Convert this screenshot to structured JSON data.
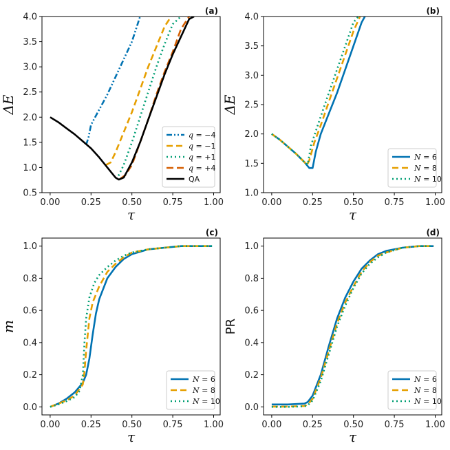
{
  "colors": {
    "blue": "#0072b2",
    "orange": "#e69f00",
    "green": "#009e73",
    "vermilion": "#d55e00",
    "black": "#000000"
  },
  "chart_data": [
    {
      "id": "a",
      "type": "line",
      "tag": "(a)",
      "xlabel": "τ",
      "ylabel": "ΔE",
      "xlim": [
        -0.05,
        1.04
      ],
      "ylim": [
        0.5,
        4.0
      ],
      "xticks": [
        "0.00",
        "0.25",
        "0.50",
        "0.75",
        "1.00"
      ],
      "yticks": [
        "0.5",
        "1.0",
        "1.5",
        "2.0",
        "2.5",
        "3.0",
        "3.5",
        "4.0"
      ],
      "legend_position": "lower-right",
      "series": [
        {
          "name": "q = −4",
          "prefix": "q",
          "suffix": " = −4",
          "color": "blue",
          "dash": "8,3,2,3,2,3",
          "x": [
            0.22,
            0.235,
            0.25,
            0.3,
            0.35,
            0.4,
            0.45,
            0.5,
            0.55
          ],
          "y": [
            1.45,
            1.6,
            1.85,
            2.15,
            2.45,
            2.8,
            3.15,
            3.5,
            4.0
          ]
        },
        {
          "name": "q = −1",
          "prefix": "q",
          "suffix": " = −1",
          "color": "orange",
          "dash": "9,5",
          "x": [
            0.34,
            0.37,
            0.4,
            0.45,
            0.5,
            0.55,
            0.6,
            0.65,
            0.7,
            0.74
          ],
          "y": [
            1.05,
            1.1,
            1.3,
            1.7,
            2.1,
            2.55,
            3.0,
            3.4,
            3.8,
            4.0
          ]
        },
        {
          "name": "q = +1",
          "prefix": "q",
          "suffix": " = +1",
          "color": "green",
          "dash": "2,4",
          "x": [
            0.4,
            0.42,
            0.45,
            0.5,
            0.55,
            0.6,
            0.65,
            0.7,
            0.75,
            0.8
          ],
          "y": [
            0.78,
            0.85,
            1.05,
            1.5,
            2.0,
            2.5,
            3.0,
            3.45,
            3.85,
            4.0
          ]
        },
        {
          "name": "q = +4",
          "prefix": "q",
          "suffix": " = +4",
          "color": "vermilion",
          "dash": "10,5",
          "x": [
            0.43,
            0.46,
            0.5,
            0.55,
            0.6,
            0.65,
            0.7,
            0.75,
            0.8,
            0.85
          ],
          "y": [
            0.78,
            0.85,
            1.05,
            1.5,
            1.95,
            2.45,
            2.9,
            3.3,
            3.75,
            4.0
          ]
        },
        {
          "name": "QA",
          "prefix": "",
          "suffix": "QA",
          "color": "black",
          "dash": "",
          "x": [
            0.0,
            0.05,
            0.1,
            0.15,
            0.2,
            0.25,
            0.3,
            0.35,
            0.4,
            0.42,
            0.45,
            0.5,
            0.55,
            0.6,
            0.65,
            0.7,
            0.75,
            0.8,
            0.85,
            0.88
          ],
          "y": [
            2.0,
            1.9,
            1.78,
            1.66,
            1.52,
            1.38,
            1.2,
            1.0,
            0.8,
            0.76,
            0.8,
            1.1,
            1.5,
            1.95,
            2.4,
            2.85,
            3.25,
            3.6,
            3.95,
            4.0
          ]
        }
      ]
    },
    {
      "id": "b",
      "type": "line",
      "tag": "(b)",
      "xlabel": "τ",
      "ylabel": "ΔE",
      "xlim": [
        -0.05,
        1.04
      ],
      "ylim": [
        1.0,
        4.0
      ],
      "xticks": [
        "0.00",
        "0.25",
        "0.50",
        "0.75",
        "1.00"
      ],
      "yticks": [
        "1.0",
        "1.5",
        "2.0",
        "2.5",
        "3.0",
        "3.5",
        "4.0"
      ],
      "legend_position": "lower-right",
      "series": [
        {
          "name": "N = 6",
          "prefix": "N",
          "suffix": " = 6",
          "color": "blue",
          "dash": "",
          "x": [
            0.0,
            0.05,
            0.1,
            0.15,
            0.2,
            0.23,
            0.25,
            0.27,
            0.3,
            0.35,
            0.4,
            0.45,
            0.5,
            0.55,
            0.57
          ],
          "y": [
            2.0,
            1.9,
            1.78,
            1.66,
            1.52,
            1.42,
            1.42,
            1.7,
            2.0,
            2.35,
            2.7,
            3.1,
            3.5,
            3.9,
            4.0
          ]
        },
        {
          "name": "N = 8",
          "prefix": "N",
          "suffix": " = 8",
          "color": "orange",
          "dash": "9,5",
          "x": [
            0.0,
            0.05,
            0.1,
            0.15,
            0.2,
            0.215,
            0.23,
            0.26,
            0.3,
            0.35,
            0.4,
            0.45,
            0.5,
            0.54
          ],
          "y": [
            2.0,
            1.9,
            1.78,
            1.66,
            1.52,
            1.47,
            1.55,
            1.85,
            2.15,
            2.55,
            2.95,
            3.35,
            3.75,
            4.0
          ]
        },
        {
          "name": "N = 10",
          "prefix": "N",
          "suffix": " = 10",
          "color": "green",
          "dash": "2,4",
          "x": [
            0.0,
            0.05,
            0.1,
            0.15,
            0.2,
            0.22,
            0.24,
            0.27,
            0.3,
            0.35,
            0.4,
            0.45,
            0.5,
            0.53
          ],
          "y": [
            2.0,
            1.9,
            1.78,
            1.66,
            1.52,
            1.48,
            1.8,
            2.05,
            2.3,
            2.7,
            3.1,
            3.5,
            3.9,
            4.0
          ]
        }
      ]
    },
    {
      "id": "c",
      "type": "line",
      "tag": "(c)",
      "xlabel": "τ",
      "ylabel": "m",
      "xlim": [
        -0.05,
        1.04
      ],
      "ylim": [
        -0.05,
        1.05
      ],
      "xticks": [
        "0.00",
        "0.25",
        "0.50",
        "0.75",
        "1.00"
      ],
      "yticks": [
        "0.0",
        "0.2",
        "0.4",
        "0.6",
        "0.8",
        "1.0"
      ],
      "legend_position": "lower-right",
      "series": [
        {
          "name": "N = 6",
          "prefix": "N",
          "suffix": " = 6",
          "color": "blue",
          "dash": "",
          "x": [
            0.0,
            0.05,
            0.1,
            0.15,
            0.2,
            0.22,
            0.24,
            0.26,
            0.28,
            0.3,
            0.35,
            0.4,
            0.45,
            0.5,
            0.6,
            0.7,
            0.8,
            0.9,
            0.99
          ],
          "y": [
            0.0,
            0.02,
            0.05,
            0.09,
            0.15,
            0.2,
            0.3,
            0.45,
            0.58,
            0.67,
            0.8,
            0.87,
            0.92,
            0.95,
            0.98,
            0.99,
            1.0,
            1.0,
            1.0
          ]
        },
        {
          "name": "N = 8",
          "prefix": "N",
          "suffix": " = 8",
          "color": "orange",
          "dash": "9,5",
          "x": [
            0.0,
            0.05,
            0.1,
            0.15,
            0.2,
            0.21,
            0.22,
            0.24,
            0.26,
            0.3,
            0.35,
            0.4,
            0.45,
            0.5,
            0.6,
            0.7,
            0.8,
            0.9,
            0.99
          ],
          "y": [
            0.0,
            0.02,
            0.04,
            0.07,
            0.14,
            0.22,
            0.35,
            0.55,
            0.65,
            0.75,
            0.84,
            0.89,
            0.93,
            0.96,
            0.98,
            0.99,
            1.0,
            1.0,
            1.0
          ]
        },
        {
          "name": "N = 10",
          "prefix": "N",
          "suffix": " = 10",
          "color": "green",
          "dash": "2,4",
          "x": [
            0.0,
            0.05,
            0.1,
            0.15,
            0.18,
            0.2,
            0.21,
            0.22,
            0.24,
            0.27,
            0.3,
            0.35,
            0.4,
            0.45,
            0.5,
            0.6,
            0.7,
            0.8,
            0.9,
            0.99
          ],
          "y": [
            0.0,
            0.015,
            0.035,
            0.06,
            0.1,
            0.2,
            0.4,
            0.55,
            0.68,
            0.77,
            0.82,
            0.87,
            0.91,
            0.94,
            0.96,
            0.98,
            0.99,
            1.0,
            1.0,
            1.0
          ]
        }
      ]
    },
    {
      "id": "d",
      "type": "line",
      "tag": "(d)",
      "xlabel": "τ",
      "ylabel": "PR",
      "xlim": [
        -0.05,
        1.04
      ],
      "ylim": [
        -0.05,
        1.05
      ],
      "xticks": [
        "0.00",
        "0.25",
        "0.50",
        "0.75",
        "1.00"
      ],
      "yticks": [
        "0.0",
        "0.2",
        "0.4",
        "0.6",
        "0.8",
        "1.0"
      ],
      "legend_position": "lower-right",
      "series": [
        {
          "name": "N = 6",
          "prefix": "N",
          "suffix": " = 6",
          "color": "blue",
          "dash": "",
          "x": [
            0.0,
            0.1,
            0.2,
            0.22,
            0.25,
            0.3,
            0.35,
            0.4,
            0.45,
            0.5,
            0.55,
            0.6,
            0.65,
            0.7,
            0.8,
            0.9,
            0.99
          ],
          "y": [
            0.015,
            0.015,
            0.02,
            0.03,
            0.07,
            0.2,
            0.38,
            0.55,
            0.68,
            0.78,
            0.86,
            0.91,
            0.95,
            0.97,
            0.99,
            1.0,
            1.0
          ]
        },
        {
          "name": "N = 8",
          "prefix": "N",
          "suffix": " = 8",
          "color": "orange",
          "dash": "9,5",
          "x": [
            0.0,
            0.1,
            0.2,
            0.22,
            0.25,
            0.3,
            0.35,
            0.4,
            0.45,
            0.5,
            0.55,
            0.6,
            0.65,
            0.7,
            0.8,
            0.9,
            0.99
          ],
          "y": [
            0.002,
            0.002,
            0.005,
            0.015,
            0.05,
            0.18,
            0.35,
            0.52,
            0.65,
            0.75,
            0.84,
            0.9,
            0.94,
            0.96,
            0.99,
            1.0,
            1.0
          ]
        },
        {
          "name": "N = 10",
          "prefix": "N",
          "suffix": " = 10",
          "color": "green",
          "dash": "2,4",
          "x": [
            0.0,
            0.1,
            0.2,
            0.22,
            0.25,
            0.3,
            0.35,
            0.4,
            0.45,
            0.5,
            0.55,
            0.6,
            0.65,
            0.7,
            0.8,
            0.9,
            0.99
          ],
          "y": [
            0.0,
            0.0,
            0.003,
            0.01,
            0.04,
            0.16,
            0.33,
            0.5,
            0.63,
            0.74,
            0.83,
            0.89,
            0.93,
            0.96,
            0.99,
            1.0,
            1.0
          ]
        }
      ]
    }
  ]
}
